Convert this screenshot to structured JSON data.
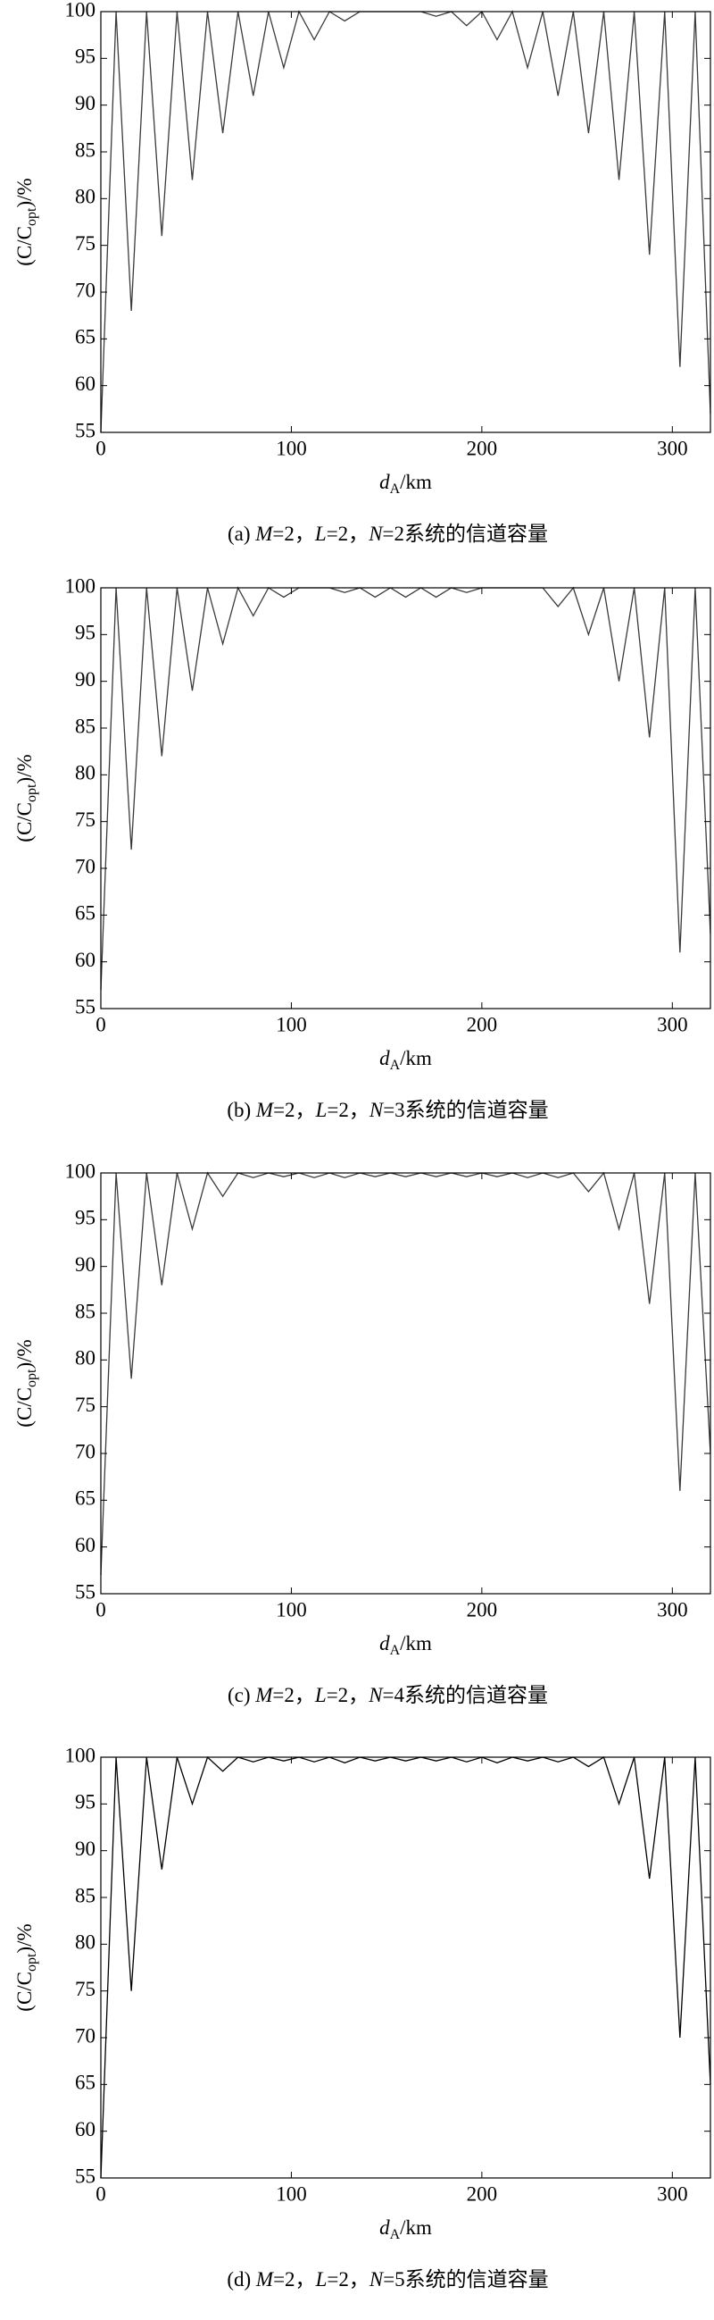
{
  "chart_data": [
    {
      "type": "line",
      "y_label": [
        "(C/C",
        "opt",
        ")/%"
      ],
      "x_label": [
        "d",
        "A",
        "/km"
      ],
      "caption": [
        "(a) ",
        "M",
        "=2，",
        "L",
        "=2，",
        "N",
        "=2系统的信道容量"
      ],
      "x": [
        0,
        8,
        16,
        24,
        32,
        40,
        48,
        56,
        64,
        72,
        80,
        88,
        96,
        104,
        112,
        120,
        128,
        136,
        144,
        152,
        160,
        168,
        176,
        184,
        192,
        200,
        208,
        216,
        224,
        232,
        240,
        248,
        256,
        264,
        272,
        280,
        288,
        296,
        304,
        312,
        320
      ],
      "color": "#3a3a3a",
      "values": [
        55,
        100,
        68,
        100,
        76,
        100,
        82,
        100,
        87,
        100,
        91,
        100,
        94,
        100,
        97,
        100,
        99,
        100,
        100,
        100,
        100,
        100,
        99.5,
        100,
        98.5,
        100,
        97,
        100,
        94,
        100,
        91,
        100,
        87,
        100,
        82,
        100,
        74,
        100,
        62,
        100,
        57
      ],
      "xlim": [
        0,
        320
      ],
      "xticks": [
        0,
        100,
        200,
        300
      ],
      "ylim": [
        55,
        100
      ],
      "yticks": [
        55,
        60,
        65,
        70,
        75,
        80,
        85,
        90,
        95,
        100
      ]
    },
    {
      "type": "line",
      "y_label": [
        "(C/C",
        "opt",
        ")/%"
      ],
      "x_label": [
        "d",
        "A",
        "/km"
      ],
      "caption": [
        "(b) ",
        "M",
        "=2，",
        "L",
        "=2，",
        "N",
        "=3系统的信道容量"
      ],
      "x": [
        0,
        8,
        16,
        24,
        32,
        40,
        48,
        56,
        64,
        72,
        80,
        88,
        96,
        104,
        112,
        120,
        128,
        136,
        144,
        152,
        160,
        168,
        176,
        184,
        192,
        200,
        208,
        216,
        224,
        232,
        240,
        248,
        256,
        264,
        272,
        280,
        288,
        296,
        304,
        312,
        320
      ],
      "color": "#3a3a3a",
      "values": [
        57,
        100,
        72,
        100,
        82,
        100,
        89,
        100,
        94,
        100,
        97,
        100,
        99,
        100,
        100,
        100,
        99.5,
        100,
        99,
        100,
        99,
        100,
        99,
        100,
        99.5,
        100,
        100,
        100,
        100,
        100,
        98,
        100,
        95,
        100,
        90,
        100,
        84,
        100,
        61,
        100,
        63
      ],
      "xlim": [
        0,
        320
      ],
      "xticks": [
        0,
        100,
        200,
        300
      ],
      "ylim": [
        55,
        100
      ],
      "yticks": [
        55,
        60,
        65,
        70,
        75,
        80,
        85,
        90,
        95,
        100
      ]
    },
    {
      "type": "line",
      "y_label": [
        "(C/C",
        "opt",
        ")/%"
      ],
      "x_label": [
        "d",
        "A",
        "/km"
      ],
      "caption": [
        "(c) ",
        "M",
        "=2，",
        "L",
        "=2，",
        "N",
        "=4系统的信道容量"
      ],
      "x": [
        0,
        8,
        16,
        24,
        32,
        40,
        48,
        56,
        64,
        72,
        80,
        88,
        96,
        104,
        112,
        120,
        128,
        136,
        144,
        152,
        160,
        168,
        176,
        184,
        192,
        200,
        208,
        216,
        224,
        232,
        240,
        248,
        256,
        264,
        272,
        280,
        288,
        296,
        304,
        312,
        320
      ],
      "color": "#3a3a3a",
      "values": [
        57,
        100,
        78,
        100,
        88,
        100,
        94,
        100,
        97.5,
        100,
        99.5,
        100,
        99.6,
        100,
        99.5,
        100,
        99.5,
        100,
        99.6,
        100,
        99.6,
        100,
        99.6,
        100,
        99.6,
        100,
        99.6,
        100,
        99.5,
        100,
        99.5,
        100,
        98,
        100,
        94,
        100,
        86,
        100,
        66,
        100,
        70
      ],
      "xlim": [
        0,
        320
      ],
      "xticks": [
        0,
        100,
        200,
        300
      ],
      "ylim": [
        55,
        100
      ],
      "yticks": [
        55,
        60,
        65,
        70,
        75,
        80,
        85,
        90,
        95,
        100
      ]
    },
    {
      "type": "line",
      "y_label": [
        "(C/C",
        "opt",
        ")/%"
      ],
      "x_label": [
        "d",
        "A",
        "/km"
      ],
      "caption": [
        "(d) ",
        "M",
        "=2，",
        "L",
        "=2，",
        "N",
        "=5系统的信道容量"
      ],
      "x": [
        0,
        8,
        16,
        24,
        32,
        40,
        48,
        56,
        64,
        72,
        80,
        88,
        96,
        104,
        112,
        120,
        128,
        136,
        144,
        152,
        160,
        168,
        176,
        184,
        192,
        200,
        208,
        216,
        224,
        232,
        240,
        248,
        256,
        264,
        272,
        280,
        288,
        296,
        304,
        312,
        320
      ],
      "color": "#000000",
      "values": [
        55,
        100,
        75,
        100,
        88,
        100,
        95,
        100,
        98.5,
        100,
        99.5,
        100,
        99.6,
        100,
        99.5,
        100,
        99.4,
        100,
        99.6,
        100,
        99.6,
        100,
        99.6,
        100,
        99.5,
        100,
        99.4,
        100,
        99.6,
        100,
        99.5,
        100,
        99,
        100,
        95,
        100,
        87,
        100,
        70,
        100,
        65
      ],
      "xlim": [
        0,
        320
      ],
      "xticks": [
        0,
        100,
        200,
        300
      ],
      "ylim": [
        55,
        100
      ],
      "yticks": [
        55,
        60,
        65,
        70,
        75,
        80,
        85,
        90,
        95,
        100
      ]
    }
  ]
}
